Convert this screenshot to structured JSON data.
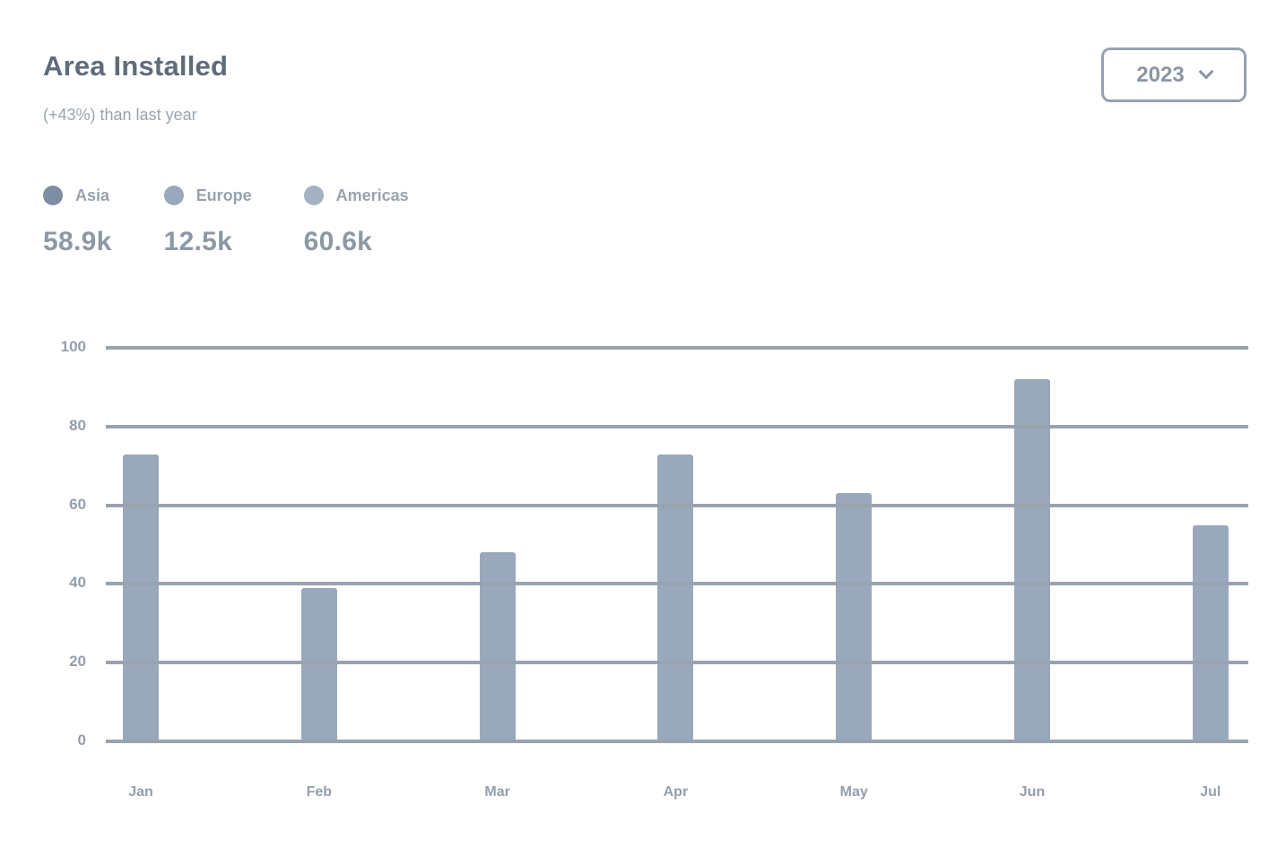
{
  "header": {
    "title": "Area Installed",
    "subtitle": "(+43%) than last year",
    "year_select": {
      "value": "2023",
      "icon": "chevron-down-icon"
    }
  },
  "legend": {
    "items": [
      {
        "label": "Asia",
        "value": "58.9k",
        "color": "#7e8da1"
      },
      {
        "label": "Europe",
        "value": "12.5k",
        "color": "#9aa8bc"
      },
      {
        "label": "Americas",
        "value": "60.6k",
        "color": "#a4b1c3"
      }
    ]
  },
  "chart_data": {
    "type": "bar",
    "title": "Area Installed",
    "categories": [
      "Jan",
      "Feb",
      "Mar",
      "Apr",
      "May",
      "Jun",
      "Jul"
    ],
    "values": [
      73,
      39,
      48,
      73,
      63,
      92,
      55
    ],
    "xlabel": "",
    "ylabel": "",
    "ylim": [
      0,
      100
    ],
    "yticks": [
      0,
      20,
      40,
      60,
      80,
      100
    ],
    "grid": true,
    "legend_position": "top-left",
    "bar_color": "#9aa8bc",
    "grid_color": "#98a3b0"
  }
}
